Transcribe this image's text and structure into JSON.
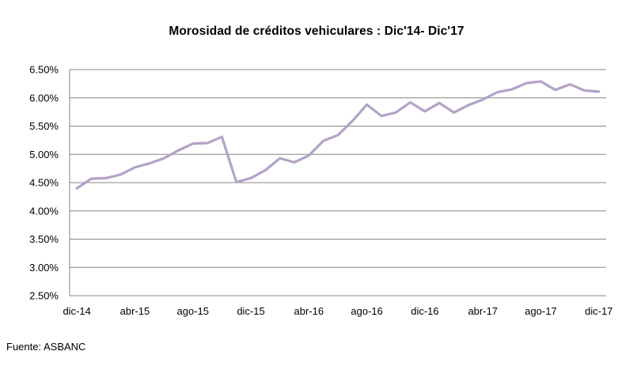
{
  "chart_data": {
    "type": "line",
    "title": "Morosidad de créditos vehiculares : Dic'14- Dic'17",
    "xlabel": "",
    "ylabel": "",
    "ylim": [
      0.025,
      0.065
    ],
    "y_ticks": [
      "2.50%",
      "3.00%",
      "3.50%",
      "4.00%",
      "4.50%",
      "5.00%",
      "5.50%",
      "6.00%",
      "6.50%"
    ],
    "x_tick_labels": [
      "dic-14",
      "abr-15",
      "ago-15",
      "dic-15",
      "abr-16",
      "ago-16",
      "dic-16",
      "abr-17",
      "ago-17",
      "dic-17"
    ],
    "grid": "horizontal",
    "legend": "none",
    "line_color": "#B3A2C7",
    "x": [
      "dic-14",
      "ene-15",
      "feb-15",
      "mar-15",
      "abr-15",
      "may-15",
      "jun-15",
      "jul-15",
      "ago-15",
      "sep-15",
      "oct-15",
      "nov-15",
      "dic-15",
      "ene-16",
      "feb-16",
      "mar-16",
      "abr-16",
      "may-16",
      "jun-16",
      "jul-16",
      "ago-16",
      "sep-16",
      "oct-16",
      "nov-16",
      "dic-16",
      "ene-17",
      "feb-17",
      "mar-17",
      "abr-17",
      "may-17",
      "jun-17",
      "jul-17",
      "ago-17",
      "sep-17",
      "oct-17",
      "nov-17",
      "dic-17"
    ],
    "series": [
      {
        "values": [
          0.044,
          0.0457,
          0.0458,
          0.0464,
          0.0477,
          0.0484,
          0.0493,
          0.0507,
          0.0519,
          0.052,
          0.0531,
          0.0451,
          0.0458,
          0.0472,
          0.0493,
          0.0486,
          0.0498,
          0.0524,
          0.0534,
          0.0559,
          0.0588,
          0.0568,
          0.0574,
          0.0592,
          0.0576,
          0.0591,
          0.0574,
          0.0587,
          0.0597,
          0.061,
          0.0615,
          0.0626,
          0.0629,
          0.0614,
          0.0624,
          0.0613,
          0.0611
        ]
      }
    ]
  },
  "footer": {
    "source": "Fuente: ASBANC"
  }
}
